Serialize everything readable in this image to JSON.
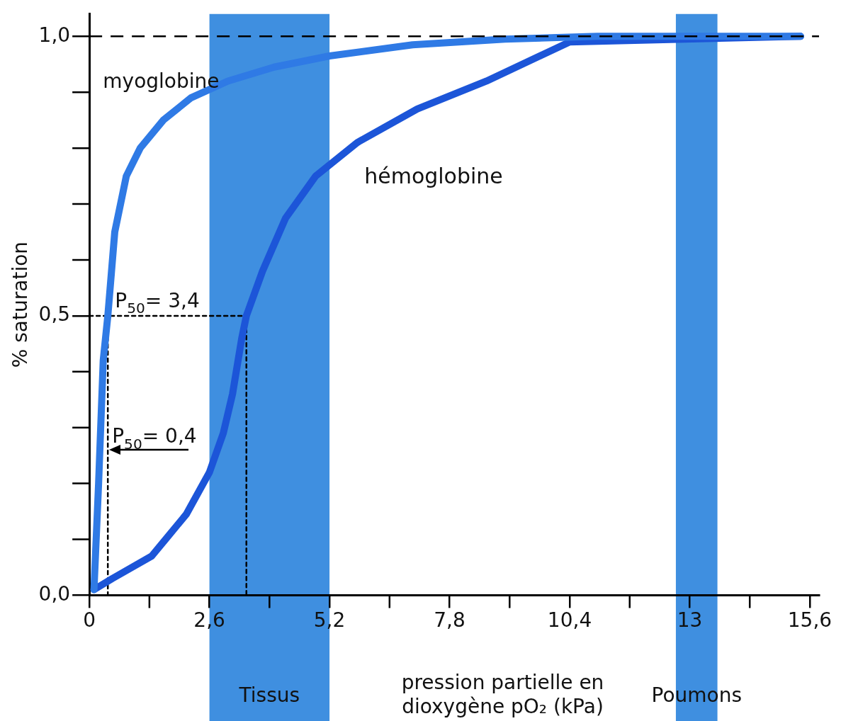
{
  "chart_data": {
    "type": "line",
    "xlabel": "pression partielle en dioxygène pO₂ (kPa)",
    "ylabel": "% saturation",
    "xlim": [
      0,
      15.8
    ],
    "ylim": [
      0,
      1.04
    ],
    "xticks": [
      0,
      {
        "value": 2.6,
        "label": "2,6"
      },
      {
        "value": 5.2,
        "label": "5,2"
      },
      {
        "value": 7.8,
        "label": "7,8"
      },
      {
        "value": 10.4,
        "label": "10,4"
      },
      13,
      {
        "value": 15.6,
        "label": "15,6"
      }
    ],
    "yticks": [
      {
        "value": 0,
        "label": "0,0"
      },
      {
        "value": 0.5,
        "label": "0,5"
      },
      {
        "value": 1,
        "label": "1,0"
      }
    ],
    "grid": false,
    "legend": false,
    "marker": "none",
    "series": [
      {
        "name": "myoglobine",
        "color": "#2f7ae5",
        "x": [
          0.1,
          0.2,
          0.3,
          0.4,
          0.55,
          0.8,
          1.1,
          1.6,
          2.2,
          3,
          4,
          5.2,
          7,
          9,
          11,
          15.4
        ],
        "values": [
          0.01,
          0.2,
          0.42,
          0.5,
          0.65,
          0.75,
          0.8,
          0.85,
          0.89,
          0.92,
          0.945,
          0.965,
          0.985,
          0.995,
          1,
          1
        ]
      },
      {
        "name": "hémoglobine",
        "color": "#1c55d8",
        "x": [
          0.1,
          0.5,
          1.35,
          2.1,
          2.6,
          2.9,
          3.1,
          3.3,
          3.4,
          3.75,
          4.25,
          4.9,
          5.8,
          7.1,
          8.6,
          10.4,
          15.4
        ],
        "values": [
          0.01,
          0.03,
          0.07,
          0.145,
          0.22,
          0.29,
          0.36,
          0.46,
          0.5,
          0.58,
          0.675,
          0.75,
          0.81,
          0.87,
          0.92,
          0.99,
          1
        ]
      },
      {
        "type": "line",
        "color": "#000000",
        "line_style": "dotted",
        "x": [
          0,
          3.4,
          3.4
        ],
        "values": [
          0.5,
          0.5,
          0
        ]
      },
      {
        "type": "line",
        "color": "#000000",
        "line_style": "dotted",
        "x": [
          0.4,
          0.4
        ],
        "values": [
          0.5,
          0
        ]
      }
    ],
    "ref_lines": [
      {
        "axis": "y",
        "value": 1,
        "label": null,
        "color": "#000000",
        "line_style": "dashed"
      }
    ],
    "bands": [
      {
        "axis": "x",
        "from": 2.6,
        "to": 5.2,
        "label": "Tissus",
        "color": "#3f8fe0"
      },
      {
        "axis": "x",
        "from": 12.7,
        "to": 13.6,
        "label": "Poumons",
        "color": "#3f8fe0"
      }
    ],
    "annotations": [
      {
        "text": "P$_{50}$= 3,4",
        "x": 3.4,
        "y": 0.5
      },
      {
        "text": "P$_{50}$= 0,4",
        "x": 0.4,
        "y": 0.26
      }
    ]
  }
}
